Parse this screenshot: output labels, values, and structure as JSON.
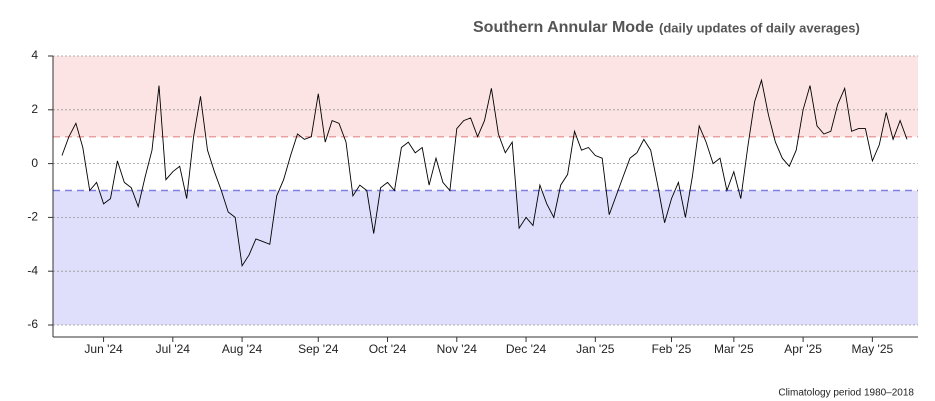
{
  "chart_data": {
    "type": "line",
    "title": "Southern Annular Mode",
    "subtitle": "(daily updates of daily averages)",
    "footnote": "Climatology period 1980–2018",
    "categories": [
      null,
      null,
      null,
      null,
      null,
      null,
      "Jun '24",
      null,
      null,
      null,
      null,
      null,
      null,
      null,
      null,
      null,
      "Jul '24",
      null,
      null,
      null,
      null,
      null,
      null,
      null,
      null,
      null,
      "Aug '24",
      null,
      null,
      null,
      null,
      null,
      null,
      null,
      null,
      null,
      null,
      "Sep '24",
      null,
      null,
      null,
      null,
      null,
      null,
      null,
      null,
      null,
      "Oct '24",
      null,
      null,
      null,
      null,
      null,
      null,
      null,
      null,
      null,
      "Nov '24",
      null,
      null,
      null,
      null,
      null,
      null,
      null,
      null,
      null,
      "Dec '24",
      null,
      null,
      null,
      null,
      null,
      null,
      null,
      null,
      null,
      "Jan '25",
      null,
      null,
      null,
      null,
      null,
      null,
      null,
      null,
      null,
      null,
      "Feb '25",
      null,
      null,
      null,
      null,
      null,
      null,
      null,
      null,
      "Mar '25",
      null,
      null,
      null,
      null,
      null,
      null,
      null,
      null,
      null,
      "Apr '25",
      null,
      null,
      null,
      null,
      null,
      null,
      null,
      null,
      null,
      "May '25",
      null,
      null,
      null,
      null,
      null
    ],
    "values": [
      0.3,
      1.0,
      1.5,
      0.6,
      -1.0,
      -0.7,
      -1.5,
      -1.3,
      0.1,
      -0.7,
      -0.9,
      -1.6,
      -0.5,
      0.5,
      2.9,
      -0.6,
      -0.3,
      -0.1,
      -1.3,
      1.0,
      2.5,
      0.5,
      -0.3,
      -1.0,
      -1.8,
      -2.0,
      -3.8,
      -3.4,
      -2.8,
      -2.9,
      -3.0,
      -1.2,
      -0.6,
      0.3,
      1.1,
      0.9,
      1.0,
      2.6,
      0.8,
      1.6,
      1.5,
      0.8,
      -1.2,
      -0.8,
      -1.0,
      -2.6,
      -0.9,
      -0.7,
      -1.0,
      0.6,
      0.8,
      0.4,
      0.6,
      -0.8,
      0.2,
      -0.7,
      -1.0,
      1.3,
      1.6,
      1.7,
      1.0,
      1.6,
      2.8,
      1.1,
      0.4,
      0.8,
      -2.4,
      -2.0,
      -2.3,
      -0.8,
      -1.5,
      -2.0,
      -0.8,
      -0.4,
      1.2,
      0.5,
      0.6,
      0.3,
      0.2,
      -1.9,
      -1.2,
      -0.5,
      0.2,
      0.4,
      0.9,
      0.5,
      -0.8,
      -2.2,
      -1.3,
      -0.7,
      -2.0,
      -0.5,
      1.4,
      0.8,
      0.0,
      0.2,
      -1.0,
      -0.3,
      -1.3,
      0.6,
      2.3,
      3.1,
      1.8,
      0.8,
      0.2,
      -0.1,
      0.5,
      2.0,
      2.9,
      1.4,
      1.1,
      1.2,
      2.2,
      2.8,
      1.2,
      1.3,
      1.3,
      0.1,
      0.7,
      1.9,
      0.9,
      1.6,
      0.9
    ],
    "color": "#000000",
    "ylim": [
      -6,
      4
    ],
    "yticks": [
      4,
      2,
      0,
      -2,
      -4,
      -6
    ],
    "grid": true,
    "upper_threshold": 1,
    "lower_threshold": -1,
    "upper_color": "#fde4e4",
    "lower_color": "#dfdffb"
  }
}
